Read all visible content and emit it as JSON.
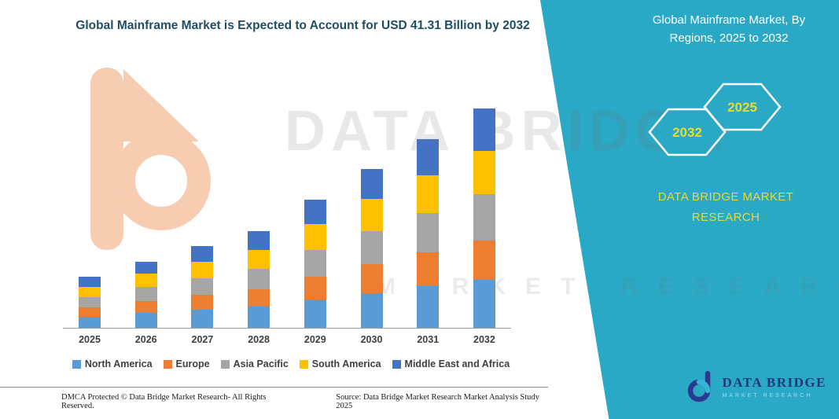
{
  "header": {
    "chart_title": "Global Mainframe Market is Expected to Account for USD 41.31 Billion by 2032"
  },
  "panel": {
    "title": "Global Mainframe Market, By Regions, 2025 to 2032",
    "hex_left_year": "2032",
    "hex_right_year": "2025",
    "brand_caps": "DATA BRIDGE MARKET RESEARCH",
    "accent_teal": "#2aa9c6",
    "accent_yellow": "#ecd92b"
  },
  "watermark": {
    "line1": "DATA BRIDGE",
    "line2": "MARKET RESEARCH"
  },
  "logo": {
    "name": "DATA BRIDGE",
    "sub": "MARKET RESEARCH"
  },
  "footer": {
    "left": "DMCA Protected © Data Bridge Market Research-  All Rights Reserved.",
    "source": "Source: Data Bridge Market Research  Market Analysis Study 2025"
  },
  "chart_data": {
    "type": "bar",
    "stacked": true,
    "title": "Global Mainframe Market is Expected to Account for USD 41.31 Billion by 2032",
    "categories": [
      "2025",
      "2026",
      "2027",
      "2028",
      "2029",
      "2030",
      "2031",
      "2032"
    ],
    "series": [
      {
        "name": "North America",
        "color": "#5B9BD5",
        "values": [
          2.1,
          2.8,
          3.4,
          4.0,
          5.3,
          6.6,
          7.8,
          9.1
        ]
      },
      {
        "name": "Europe",
        "color": "#ED7D31",
        "values": [
          1.7,
          2.3,
          2.8,
          3.3,
          4.3,
          5.4,
          6.4,
          7.4
        ]
      },
      {
        "name": "Asia Pacific",
        "color": "#A5A5A5",
        "values": [
          2.0,
          2.6,
          3.2,
          3.8,
          5.1,
          6.3,
          7.5,
          8.7
        ]
      },
      {
        "name": "South America",
        "color": "#FFC000",
        "values": [
          1.9,
          2.5,
          3.1,
          3.6,
          4.8,
          6.0,
          7.1,
          8.2
        ]
      },
      {
        "name": "Middle East and Africa",
        "color": "#4472C4",
        "values": [
          1.9,
          2.3,
          2.9,
          3.5,
          4.6,
          5.7,
          6.8,
          7.9
        ]
      }
    ],
    "totals": [
      9.6,
      12.5,
      15.4,
      18.2,
      24.1,
      30.0,
      35.6,
      41.3
    ],
    "xlabel": "",
    "ylabel": "",
    "ylim": [
      0,
      44
    ],
    "grid": false,
    "legend_position": "bottom"
  }
}
